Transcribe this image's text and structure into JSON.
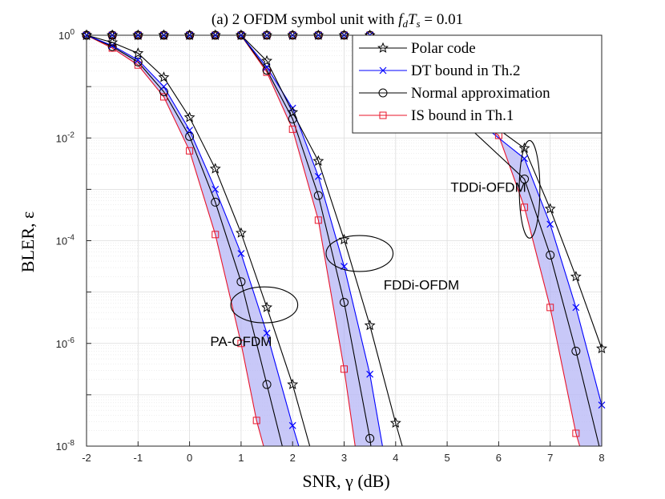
{
  "chart_data": {
    "type": "line",
    "title": "(a) 2 OFDM symbol unit with f_dT_s = 0.01",
    "title_parts": {
      "prefix": "(a) 2 OFDM symbol unit with ",
      "f": "f",
      "d": "d",
      "T": "T",
      "s": "s",
      "suffix": " = 0.01"
    },
    "xlabel": "SNR, γ (dB)",
    "ylabel": "BLER, ε",
    "yscale": "log",
    "xlim": [
      -2,
      8
    ],
    "ylim_exp": [
      -8,
      0
    ],
    "grid": true,
    "minor_grid": true,
    "legend_position": "top-right",
    "x_ticks": [
      -2,
      -1,
      0,
      1,
      2,
      3,
      4,
      5,
      6,
      7,
      8
    ],
    "x_tick_labels": [
      "-2",
      "-1",
      "0",
      "1",
      "2",
      "3",
      "4",
      "5",
      "6",
      "7",
      "8"
    ],
    "y_tick_labels": [
      {
        "exp": 0,
        "base": "10",
        "power": "0"
      },
      {
        "exp": -2,
        "base": "10",
        "power": "-2"
      },
      {
        "exp": -4,
        "base": "10",
        "power": "-4"
      },
      {
        "exp": -6,
        "base": "10",
        "power": "-6"
      },
      {
        "exp": -8,
        "base": "10",
        "power": "-8"
      }
    ],
    "legend": [
      "Polar code",
      "DT bound in Th.2",
      "Normal approximation",
      "IS bound in Th.1"
    ],
    "styles": {
      "polar": {
        "color": "#000000",
        "marker": "star"
      },
      "dt": {
        "color": "#0000ff",
        "marker": "x"
      },
      "na": {
        "color": "#000000",
        "marker": "circle"
      },
      "is": {
        "color": "#e8142a",
        "marker": "square"
      },
      "band_fill": "#b0b0f5"
    },
    "annotations": [
      {
        "text": "PA-OFDM",
        "x": 1.0,
        "y_exp": -6.05
      },
      {
        "text": "FDDi-OFDM",
        "x": 4.5,
        "y_exp": -4.95
      },
      {
        "text": "TDDi-OFDM",
        "x": 5.8,
        "y_exp": -3.05
      }
    ],
    "ellipses": [
      {
        "x": 1.45,
        "y_exp": -5.25,
        "rx_dB": 0.65,
        "ry_dec": 0.35
      },
      {
        "x": 3.3,
        "y_exp": -4.25,
        "rx_dB": 0.65,
        "ry_dec": 0.35
      },
      {
        "x": 6.6,
        "y_exp": -3.0,
        "rx_dB": 0.2,
        "ry_dec": 0.95
      }
    ],
    "curve_groups": [
      {
        "name": "PA-OFDM",
        "polar": {
          "x": [
            -2,
            -1.5,
            -1,
            -0.5,
            0,
            0.5,
            1,
            1.5,
            2,
            2.5
          ],
          "y_exp": [
            0,
            -0.14,
            -0.35,
            -0.82,
            -1.6,
            -2.6,
            -3.85,
            -5.3,
            -6.8,
            -8.6
          ]
        },
        "dt": {
          "x": [
            -2,
            -1.5,
            -1,
            -0.5,
            0,
            0.5,
            1,
            1.5,
            2,
            2.3
          ],
          "y_exp": [
            0,
            -0.2,
            -0.48,
            -1.0,
            -1.85,
            -3.0,
            -4.25,
            -5.8,
            -7.6,
            -8.6
          ]
        },
        "na": {
          "x": [
            -2,
            -1.5,
            -1,
            -0.5,
            0,
            0.5,
            1,
            1.5,
            1.95
          ],
          "y_exp": [
            0,
            -0.22,
            -0.52,
            -1.1,
            -1.97,
            -3.25,
            -4.8,
            -6.8,
            -8.6
          ]
        },
        "is": {
          "x": [
            -2,
            -1.5,
            -1,
            -0.5,
            0,
            0.5,
            1,
            1.3,
            1.6
          ],
          "y_exp": [
            0,
            -0.25,
            -0.58,
            -1.2,
            -2.25,
            -3.88,
            -6.0,
            -7.5,
            -8.6
          ]
        }
      },
      {
        "name": "FDDi-OFDM",
        "polar": {
          "x": [
            -2,
            -1.5,
            -1,
            -0.5,
            0,
            0.5,
            1,
            1.5,
            2,
            2.5,
            3,
            3.5,
            4,
            4.3
          ],
          "y_exp": [
            0,
            0,
            0,
            0,
            0,
            0,
            0,
            -0.5,
            -1.5,
            -2.45,
            -3.98,
            -5.65,
            -7.55,
            -8.6
          ]
        },
        "dt": {
          "x": [
            -2,
            -1.5,
            -1,
            -0.5,
            0,
            0.5,
            1,
            1.5,
            2,
            2.5,
            3,
            3.5,
            3.85
          ],
          "y_exp": [
            0,
            0,
            0,
            0,
            0,
            0,
            0,
            -0.62,
            -1.42,
            -2.75,
            -4.5,
            -6.6,
            -8.6
          ]
        },
        "na": {
          "x": [
            -2,
            -1.5,
            -1,
            -0.5,
            0,
            0.5,
            1,
            1.5,
            2,
            2.5,
            3,
            3.5,
            3.6
          ],
          "y_exp": [
            0,
            0,
            0,
            0,
            0,
            0,
            0,
            -0.68,
            -1.63,
            -3.12,
            -5.2,
            -7.85,
            -8.6
          ]
        },
        "is": {
          "x": [
            -2,
            -1.5,
            -1,
            -0.5,
            0,
            0.5,
            1,
            1.5,
            2,
            2.5,
            3,
            3.3
          ],
          "y_exp": [
            0,
            0,
            0,
            0,
            0,
            0,
            0,
            -0.72,
            -1.83,
            -3.6,
            -6.5,
            -8.6
          ]
        }
      },
      {
        "name": "TDDi-OFDM",
        "polar": {
          "x": [
            -2,
            -1.5,
            -1,
            -0.5,
            0,
            0.5,
            1,
            1.5,
            2,
            2.5,
            3,
            3.5,
            6.5,
            7,
            7.5,
            8,
            8.15
          ],
          "y_exp": [
            0,
            0,
            0,
            0,
            0,
            0,
            0,
            0,
            0,
            0,
            0,
            0,
            -2.2,
            -3.38,
            -4.7,
            -6.1,
            -6.7
          ]
        },
        "dt": {
          "x": [
            -2,
            -1.5,
            -1,
            -0.5,
            0,
            0.5,
            1,
            1.5,
            2,
            2.5,
            3,
            3.5,
            6.5,
            7,
            7.5,
            8,
            8.15
          ],
          "y_exp": [
            0,
            0,
            0,
            0,
            0,
            0,
            0,
            0,
            0,
            0,
            0,
            0,
            -2.4,
            -3.68,
            -5.3,
            -7.2,
            -7.9
          ]
        },
        "na": {
          "x": [
            -2,
            -1.5,
            -1,
            -0.5,
            0,
            0.5,
            1,
            1.5,
            2,
            2.5,
            3,
            3.5,
            6.5,
            7,
            7.5,
            8,
            8.15
          ],
          "y_exp": [
            0,
            0,
            0,
            0,
            0,
            0,
            0,
            0,
            0,
            0,
            0,
            0,
            -2.8,
            -4.28,
            -6.15,
            -8.2,
            -8.6
          ]
        },
        "is": {
          "x": [
            -2,
            -1.5,
            -1,
            -0.5,
            0,
            0.5,
            1,
            1.5,
            2,
            2.5,
            3,
            3.5,
            6,
            6.5,
            7,
            7.5,
            7.75
          ],
          "y_exp": [
            0,
            0,
            0,
            0,
            0,
            0,
            0,
            0,
            0,
            0,
            0,
            0,
            -1.95,
            -3.35,
            -5.3,
            -7.75,
            -8.6
          ]
        }
      }
    ]
  }
}
